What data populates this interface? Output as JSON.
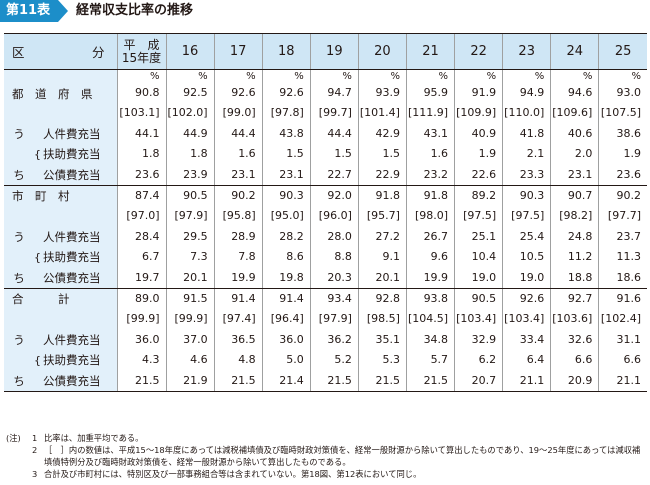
{
  "title": {
    "badge": "第11表",
    "text": "経常収支比率の推移"
  },
  "header": {
    "kubun_left": "区",
    "kubun_right": "分",
    "heisei_line1": "平　成",
    "heisei_line2": "15年度",
    "years": [
      "16",
      "17",
      "18",
      "19",
      "20",
      "21",
      "22",
      "23",
      "24",
      "25"
    ]
  },
  "unit_row": [
    "%",
    "%",
    "%",
    "%",
    "%",
    "%",
    "%",
    "%",
    "%",
    "%",
    "%"
  ],
  "groups": [
    {
      "name": "都　道　府　県",
      "main": [
        "90.8",
        "92.5",
        "92.6",
        "92.6",
        "94.7",
        "93.9",
        "95.9",
        "91.9",
        "94.9",
        "94.6",
        "93.0"
      ],
      "bracket": [
        "[103.1]",
        "[102.0]",
        "[99.0]",
        "[97.8]",
        "[99.7]",
        "[101.4]",
        "[111.9]",
        "[109.9]",
        "[110.0]",
        "[109.6]",
        "[107.5]"
      ],
      "uchi": "う　ち",
      "subs": [
        {
          "label": "人件費充当",
          "values": [
            "44.1",
            "44.9",
            "44.4",
            "43.8",
            "44.4",
            "42.9",
            "43.1",
            "40.9",
            "41.8",
            "40.6",
            "38.6"
          ]
        },
        {
          "label": "扶助費充当",
          "values": [
            "1.8",
            "1.8",
            "1.6",
            "1.5",
            "1.5",
            "1.5",
            "1.6",
            "1.9",
            "2.1",
            "2.0",
            "1.9"
          ]
        },
        {
          "label": "公債費充当",
          "values": [
            "23.6",
            "23.9",
            "23.1",
            "23.1",
            "22.7",
            "22.9",
            "23.2",
            "22.6",
            "23.3",
            "23.1",
            "23.6"
          ]
        }
      ]
    },
    {
      "name": "市　町　村",
      "main": [
        "87.4",
        "90.5",
        "90.2",
        "90.3",
        "92.0",
        "91.8",
        "91.8",
        "89.2",
        "90.3",
        "90.7",
        "90.2"
      ],
      "bracket": [
        "[97.0]",
        "[97.9]",
        "[95.8]",
        "[95.0]",
        "[96.0]",
        "[95.7]",
        "[98.0]",
        "[97.5]",
        "[97.5]",
        "[98.2]",
        "[97.7]"
      ],
      "uchi": "う　ち",
      "subs": [
        {
          "label": "人件費充当",
          "values": [
            "28.4",
            "29.5",
            "28.9",
            "28.2",
            "28.0",
            "27.2",
            "26.7",
            "25.1",
            "25.4",
            "24.8",
            "23.7"
          ]
        },
        {
          "label": "扶助費充当",
          "values": [
            "6.7",
            "7.3",
            "7.8",
            "8.6",
            "8.8",
            "9.1",
            "9.6",
            "10.4",
            "10.5",
            "11.2",
            "11.3"
          ]
        },
        {
          "label": "公債費充当",
          "values": [
            "19.7",
            "20.1",
            "19.9",
            "19.8",
            "20.3",
            "20.1",
            "19.9",
            "19.0",
            "19.0",
            "18.8",
            "18.6"
          ]
        }
      ]
    },
    {
      "name": "合　　　計",
      "main": [
        "89.0",
        "91.5",
        "91.4",
        "91.4",
        "93.4",
        "92.8",
        "93.8",
        "90.5",
        "92.6",
        "92.7",
        "91.6"
      ],
      "bracket": [
        "[99.9]",
        "[99.9]",
        "[97.4]",
        "[96.4]",
        "[97.9]",
        "[98.5]",
        "[104.5]",
        "[103.4]",
        "[103.4]",
        "[103.6]",
        "[102.4]"
      ],
      "uchi": "う　ち",
      "subs": [
        {
          "label": "人件費充当",
          "values": [
            "36.0",
            "37.0",
            "36.5",
            "36.0",
            "36.2",
            "35.1",
            "34.8",
            "32.9",
            "33.4",
            "32.6",
            "31.1"
          ]
        },
        {
          "label": "扶助費充当",
          "values": [
            "4.3",
            "4.6",
            "4.8",
            "5.0",
            "5.2",
            "5.3",
            "5.7",
            "6.2",
            "6.4",
            "6.6",
            "6.6"
          ]
        },
        {
          "label": "公債費充当",
          "values": [
            "21.5",
            "21.9",
            "21.5",
            "21.4",
            "21.5",
            "21.5",
            "21.5",
            "20.7",
            "21.1",
            "20.9",
            "21.1"
          ]
        }
      ]
    }
  ],
  "notes": {
    "prefix": "(注)",
    "items": [
      {
        "n": "1",
        "text": "比率は、加重平均である。"
      },
      {
        "n": "2",
        "text": "［　］内の数値は、平成15～18年度にあっては減税補填債及び臨時財政対策債を、経常一般財源から除いて算出したものであり、19～25年度にあっては減収補"
      },
      {
        "n": "",
        "text": "填債特例分及び臨時財政対策債を、経常一般財源から除いて算出したものである。"
      },
      {
        "n": "3",
        "text": "合計及び市町村には、特別区及び一部事務組合等は含まれていない。第18図、第12表において同じ。"
      }
    ]
  }
}
